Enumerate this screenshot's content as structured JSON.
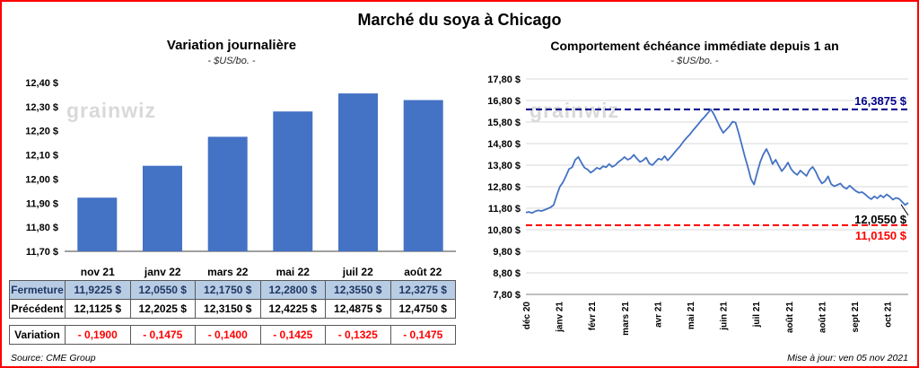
{
  "page": {
    "title": "Marché du soya à Chicago"
  },
  "watermark": "grainwiz",
  "colors": {
    "border": "#ff0000",
    "bar": "#4472c4",
    "line": "#4472c4",
    "high_line": "#00008b",
    "low_line": "#ff0000",
    "grid": "#d9d9d9",
    "table_highlight_bg": "#b8cce4",
    "table_highlight_text": "#1f3864",
    "negative": "#ff0000"
  },
  "chart_data": [
    {
      "type": "bar",
      "title": "Variation journalière",
      "subtitle": "- $US/bo. -",
      "categories": [
        "nov 21",
        "janv 22",
        "mars 22",
        "mai 22",
        "juil 22",
        "août 22"
      ],
      "values": [
        11.9225,
        12.055,
        12.175,
        12.28,
        12.355,
        12.3275
      ],
      "ylim": [
        11.7,
        12.4
      ],
      "ytick_labels": [
        "12,40 $",
        "12,30 $",
        "12,20 $",
        "12,10 $",
        "12,00 $",
        "11,90 $",
        "11,80 $",
        "11,70 $"
      ],
      "grid": false,
      "legend": false
    },
    {
      "type": "line",
      "title": "Comportement échéance immédiate depuis 1 an",
      "subtitle": "- $US/bo. -",
      "x_labels": [
        "déc 20",
        "janv 21",
        "févr 21",
        "mars 21",
        "avr 21",
        "mai 21",
        "juin 21",
        "juil 21",
        "août 21",
        "août 21",
        "sept 21",
        "oct 21"
      ],
      "ylim": [
        7.8,
        17.8
      ],
      "ytick_labels": [
        "17,80 $",
        "16,80 $",
        "15,80 $",
        "14,80 $",
        "13,80 $",
        "12,80 $",
        "11,80 $",
        "10,80 $",
        "9,80 $",
        "8,80 $",
        "7,80 $"
      ],
      "values": [
        11.6,
        11.63,
        11.58,
        11.66,
        11.7,
        11.67,
        11.72,
        11.78,
        11.84,
        11.95,
        12.4,
        12.8,
        13.0,
        13.3,
        13.62,
        13.7,
        14.05,
        14.18,
        13.92,
        13.68,
        13.6,
        13.45,
        13.55,
        13.68,
        13.62,
        13.75,
        13.7,
        13.85,
        13.72,
        13.8,
        13.95,
        14.05,
        14.18,
        14.05,
        14.12,
        14.28,
        14.1,
        13.95,
        14.02,
        14.15,
        13.88,
        13.8,
        13.95,
        14.1,
        14.05,
        14.22,
        14.02,
        14.18,
        14.35,
        14.52,
        14.68,
        14.88,
        15.05,
        15.2,
        15.38,
        15.55,
        15.72,
        15.9,
        16.05,
        16.22,
        16.39,
        16.15,
        15.85,
        15.55,
        15.3,
        15.45,
        15.6,
        15.82,
        15.78,
        15.3,
        14.75,
        14.2,
        13.7,
        13.15,
        12.9,
        13.45,
        13.95,
        14.3,
        14.55,
        14.25,
        13.85,
        14.05,
        13.78,
        13.52,
        13.7,
        13.92,
        13.62,
        13.45,
        13.35,
        13.55,
        13.42,
        13.3,
        13.58,
        13.72,
        13.5,
        13.18,
        12.95,
        13.05,
        13.28,
        12.92,
        12.82,
        12.88,
        12.95,
        12.78,
        12.7,
        12.85,
        12.72,
        12.6,
        12.52,
        12.55,
        12.45,
        12.32,
        12.22,
        12.35,
        12.26,
        12.4,
        12.3,
        12.44,
        12.34,
        12.2,
        12.28,
        12.24,
        12.1,
        11.95,
        12.055
      ],
      "high_line": {
        "value": 16.3875,
        "label": "16,3875 $"
      },
      "low_line": {
        "value": 11.015,
        "label": "11,0150 $"
      },
      "last_point": {
        "value": 12.055,
        "label": "12,0550 $"
      },
      "grid": true,
      "legend": false
    }
  ],
  "table": {
    "columns": [
      "nov 21",
      "janv 22",
      "mars 22",
      "mai 22",
      "juil 22",
      "août 22"
    ],
    "rows": [
      {
        "label": "Fermeture",
        "values": [
          "11,9225 $",
          "12,0550 $",
          "12,1750 $",
          "12,2800 $",
          "12,3550 $",
          "12,3275 $"
        ]
      },
      {
        "label": "Précédent",
        "values": [
          "12,1125 $",
          "12,2025 $",
          "12,3150 $",
          "12,4225 $",
          "12,4875 $",
          "12,4750 $"
        ]
      },
      {
        "label": "Variation",
        "values": [
          "- 0,1900",
          "- 0,1475",
          "- 0,1400",
          "- 0,1425",
          "- 0,1325",
          "- 0,1475"
        ]
      }
    ]
  },
  "footer": {
    "source": "Source: CME Group",
    "updated": "Mise à jour: ven 05 nov 2021"
  }
}
